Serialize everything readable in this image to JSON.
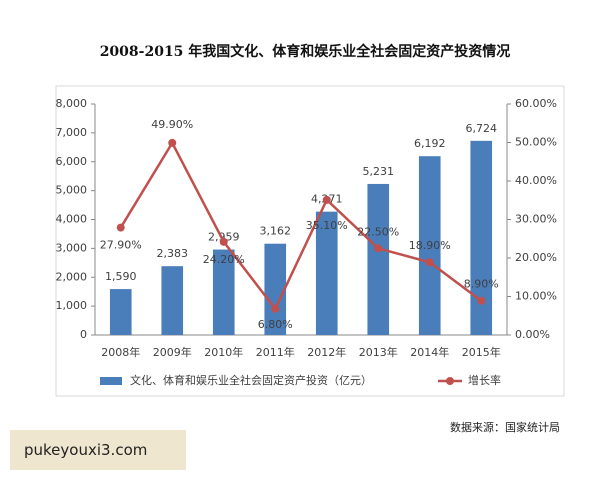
{
  "chart_data": {
    "type": "bar-line",
    "title": "2008-2015 年我国文化、体育和娱乐业全社会固定资产投资情况",
    "categories": [
      "2008年",
      "2009年",
      "2010年",
      "2011年",
      "2012年",
      "2013年",
      "2014年",
      "2015年"
    ],
    "series": [
      {
        "name": "文化、体育和娱乐业全社会固定资产投资（亿元）",
        "type": "bar",
        "color": "#4a7ebb",
        "values": [
          1590,
          2383,
          2959,
          3162,
          4271,
          5231,
          6192,
          6724
        ],
        "value_labels": [
          "1,590",
          "2,383",
          "2,959",
          "3,162",
          "4,271",
          "5,231",
          "6,192",
          "6,724"
        ]
      },
      {
        "name": "增长率",
        "type": "line",
        "axis": "y2",
        "color": "#c0504d",
        "values": [
          27.9,
          49.9,
          24.2,
          6.8,
          35.1,
          22.5,
          18.9,
          8.9
        ],
        "value_labels": [
          "27.90%",
          "49.90%",
          "24.20%",
          "6.80%",
          "35.10%",
          "22.50%",
          "18.90%",
          "8.90%"
        ]
      }
    ],
    "ylim": [
      0,
      8000
    ],
    "yticks": [
      0,
      {
        "value": 1000,
        "label": "1,000"
      },
      {
        "value": 2000,
        "label": "2,000"
      },
      {
        "value": 3000,
        "label": "3,000"
      },
      {
        "value": 4000,
        "label": "4,000"
      },
      {
        "value": 5000,
        "label": "5,000"
      },
      {
        "value": 6000,
        "label": "6,000"
      },
      {
        "value": 7000,
        "label": "7,000"
      },
      {
        "value": 8000,
        "label": "8,000"
      }
    ],
    "y2lim": [
      0,
      60
    ],
    "y2ticks": [
      {
        "value": 0,
        "label": "0.00%"
      },
      {
        "value": 10,
        "label": "10.00%"
      },
      {
        "value": 20,
        "label": "20.00%"
      },
      {
        "value": 30,
        "label": "30.00%"
      },
      {
        "value": 40,
        "label": "40.00%"
      },
      {
        "value": 50,
        "label": "50.00%"
      },
      {
        "value": 60,
        "label": "60.00%"
      }
    ],
    "legend": "bottom",
    "source": "数据来源：国家统计局"
  },
  "watermark": "pukeyouxi3.com"
}
